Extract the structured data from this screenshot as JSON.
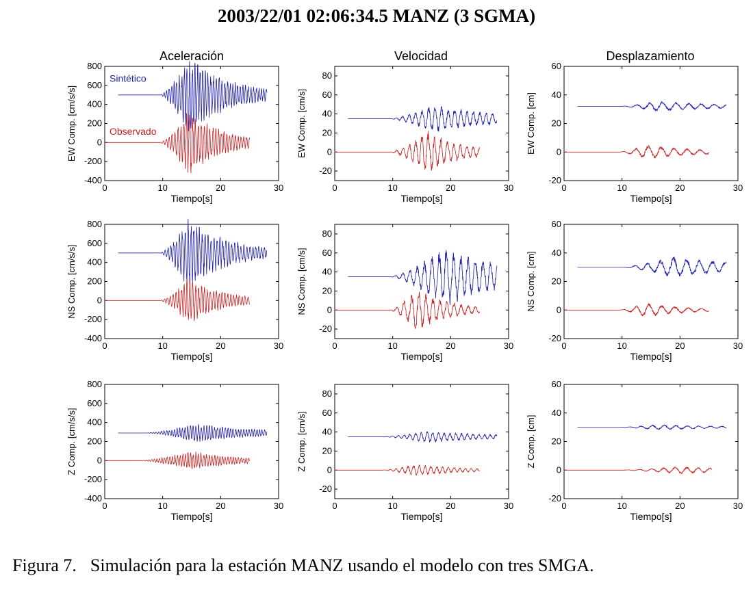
{
  "title": "2003/22/01   02:06:34.5 MANZ (3 SGMA)",
  "caption": {
    "label": "Figura 7.",
    "text": "Simulación para la estación MANZ usando el modelo con tres SMGA."
  },
  "colors": {
    "synthetic": "#1e1ea8",
    "observed": "#c62020",
    "axis": "#000000"
  },
  "columns": [
    "Aceleración",
    "Velocidad",
    "Desplazamiento"
  ],
  "legend": {
    "synthetic": "Sintético",
    "observed": "Observado"
  },
  "chart_data": [
    {
      "type": "line",
      "row": 0,
      "col": 0,
      "component": "EW",
      "ylabel": "EW Comp. [cm/s/s]",
      "xlabel": "Tiempo[s]",
      "xlim": [
        0,
        30
      ],
      "ylim": [
        -400,
        800
      ],
      "xticks": [
        0,
        10,
        20,
        30
      ],
      "yticks": [
        -400,
        -200,
        0,
        200,
        400,
        600,
        800
      ],
      "series": [
        {
          "name": "Sintético",
          "baseline": 500,
          "t_start": 2.3,
          "t_onset": 9.5,
          "t_end": 28,
          "amp": 330,
          "peak_t": 14.5,
          "freq": 2.2,
          "decay": 6
        },
        {
          "name": "Observado",
          "baseline": 0,
          "t_start": 0,
          "t_onset": 9.5,
          "t_end": 25,
          "amp": 270,
          "peak_t": 14.5,
          "freq": 2.0,
          "decay": 5
        }
      ]
    },
    {
      "type": "line",
      "row": 0,
      "col": 1,
      "component": "EW",
      "ylabel": "EW Comp. [cm/s]",
      "xlabel": "Tiempo[s]",
      "xlim": [
        0,
        30
      ],
      "ylim": [
        -30,
        90
      ],
      "xticks": [
        0,
        10,
        20,
        30
      ],
      "yticks": [
        -20,
        0,
        20,
        40,
        60,
        80
      ],
      "series": [
        {
          "name": "Sintético",
          "baseline": 35,
          "t_start": 2.3,
          "t_onset": 9.5,
          "t_end": 28,
          "amp": 12,
          "peak_t": 17,
          "freq": 0.9,
          "decay": 10
        },
        {
          "name": "Observado",
          "baseline": 0,
          "t_start": 0,
          "t_onset": 9.5,
          "t_end": 25,
          "amp": 18,
          "peak_t": 16,
          "freq": 0.9,
          "decay": 5
        }
      ]
    },
    {
      "type": "line",
      "row": 0,
      "col": 2,
      "component": "EW",
      "ylabel": "EW Comp. [cm]",
      "xlabel": "Tiempo[s]",
      "xlim": [
        0,
        30
      ],
      "ylim": [
        -20,
        60
      ],
      "xticks": [
        0,
        10,
        20,
        30
      ],
      "yticks": [
        -20,
        0,
        20,
        40,
        60
      ],
      "series": [
        {
          "name": "Sintético",
          "baseline": 32,
          "t_start": 2.3,
          "t_onset": 9.5,
          "t_end": 28,
          "amp": 3,
          "peak_t": 16,
          "freq": 0.45,
          "decay": 10
        },
        {
          "name": "Observado",
          "baseline": 0,
          "t_start": 0,
          "t_onset": 9.5,
          "t_end": 25,
          "amp": 4,
          "peak_t": 14,
          "freq": 0.45,
          "decay": 8
        }
      ]
    },
    {
      "type": "line",
      "row": 1,
      "col": 0,
      "component": "NS",
      "ylabel": "NS Comp. [cm/s/s]",
      "xlabel": "Tiempo[s]",
      "xlim": [
        0,
        30
      ],
      "ylim": [
        -400,
        800
      ],
      "xticks": [
        0,
        10,
        20,
        30
      ],
      "yticks": [
        -400,
        -200,
        0,
        200,
        400,
        600,
        800
      ],
      "series": [
        {
          "name": "Sintético",
          "baseline": 500,
          "t_start": 2.3,
          "t_onset": 9.5,
          "t_end": 28,
          "amp": 300,
          "peak_t": 14.5,
          "freq": 2.0,
          "decay": 6
        },
        {
          "name": "Observado",
          "baseline": 0,
          "t_start": 0,
          "t_onset": 9.5,
          "t_end": 25,
          "amp": 200,
          "peak_t": 14.5,
          "freq": 2.0,
          "decay": 5
        }
      ]
    },
    {
      "type": "line",
      "row": 1,
      "col": 1,
      "component": "NS",
      "ylabel": "NS Comp. [cm/s]",
      "xlabel": "Tiempo[s]",
      "xlim": [
        0,
        30
      ],
      "ylim": [
        -30,
        90
      ],
      "xticks": [
        0,
        10,
        20,
        30
      ],
      "yticks": [
        -20,
        0,
        20,
        40,
        60,
        80
      ],
      "series": [
        {
          "name": "Sintético",
          "baseline": 35,
          "t_start": 2.3,
          "t_onset": 9.5,
          "t_end": 28,
          "amp": 25,
          "peak_t": 19,
          "freq": 0.8,
          "decay": 10
        },
        {
          "name": "Observado",
          "baseline": 0,
          "t_start": 0,
          "t_onset": 9.5,
          "t_end": 25,
          "amp": 18,
          "peak_t": 14,
          "freq": 0.8,
          "decay": 5
        }
      ]
    },
    {
      "type": "line",
      "row": 1,
      "col": 2,
      "component": "NS",
      "ylabel": "NS Comp. [cm]",
      "xlabel": "Tiempo[s]",
      "xlim": [
        0,
        30
      ],
      "ylim": [
        -20,
        60
      ],
      "xticks": [
        0,
        10,
        20,
        30
      ],
      "yticks": [
        -20,
        0,
        20,
        40,
        60
      ],
      "series": [
        {
          "name": "Sintético",
          "baseline": 30,
          "t_start": 2.3,
          "t_onset": 9.5,
          "t_end": 28,
          "amp": 6,
          "peak_t": 19,
          "freq": 0.45,
          "decay": 10
        },
        {
          "name": "Observado",
          "baseline": 0,
          "t_start": 0,
          "t_onset": 9.5,
          "t_end": 25,
          "amp": 4,
          "peak_t": 14,
          "freq": 0.45,
          "decay": 6
        }
      ]
    },
    {
      "type": "line",
      "row": 2,
      "col": 0,
      "component": "Z",
      "ylabel": "Z Comp. [cm/s/s]",
      "xlabel": "Tiempo[s]",
      "xlim": [
        0,
        30
      ],
      "ylim": [
        -400,
        800
      ],
      "xticks": [
        0,
        10,
        20,
        30
      ],
      "yticks": [
        -400,
        -200,
        0,
        200,
        400,
        600,
        800
      ],
      "series": [
        {
          "name": "Sintético",
          "baseline": 290,
          "t_start": 2.3,
          "t_onset": 7,
          "t_end": 28,
          "amp": 80,
          "peak_t": 16,
          "freq": 2.2,
          "decay": 9
        },
        {
          "name": "Observado",
          "baseline": 0,
          "t_start": 0,
          "t_onset": 6,
          "t_end": 25,
          "amp": 80,
          "peak_t": 15,
          "freq": 2.2,
          "decay": 7
        }
      ]
    },
    {
      "type": "line",
      "row": 2,
      "col": 1,
      "component": "Z",
      "ylabel": "Z Comp. [cm/s]",
      "xlabel": "Tiempo[s]",
      "xlim": [
        0,
        30
      ],
      "ylim": [
        -30,
        90
      ],
      "xticks": [
        0,
        10,
        20,
        30
      ],
      "yticks": [
        -20,
        0,
        20,
        40,
        60,
        80
      ],
      "series": [
        {
          "name": "Sintético",
          "baseline": 35,
          "t_start": 2.3,
          "t_onset": 8,
          "t_end": 28,
          "amp": 5,
          "peak_t": 16,
          "freq": 1.0,
          "decay": 10
        },
        {
          "name": "Observado",
          "baseline": 0,
          "t_start": 0,
          "t_onset": 8,
          "t_end": 25,
          "amp": 5,
          "peak_t": 14,
          "freq": 1.0,
          "decay": 7
        }
      ]
    },
    {
      "type": "line",
      "row": 2,
      "col": 2,
      "component": "Z",
      "ylabel": "Z Comp. [cm]",
      "xlabel": "Tiempo[s]",
      "xlim": [
        0,
        30
      ],
      "ylim": [
        -20,
        60
      ],
      "xticks": [
        0,
        10,
        20,
        30
      ],
      "yticks": [
        -20,
        0,
        20,
        40,
        60
      ],
      "series": [
        {
          "name": "Sintético",
          "baseline": 30,
          "t_start": 2.3,
          "t_onset": 9.5,
          "t_end": 28,
          "amp": 1.5,
          "peak_t": 16,
          "freq": 0.5,
          "decay": 10
        },
        {
          "name": "Observado",
          "baseline": 0,
          "t_start": 0,
          "t_onset": 9.5,
          "t_end": 25.5,
          "amp": 2,
          "peak_t": 20,
          "freq": 0.5,
          "decay": 10
        }
      ]
    }
  ]
}
